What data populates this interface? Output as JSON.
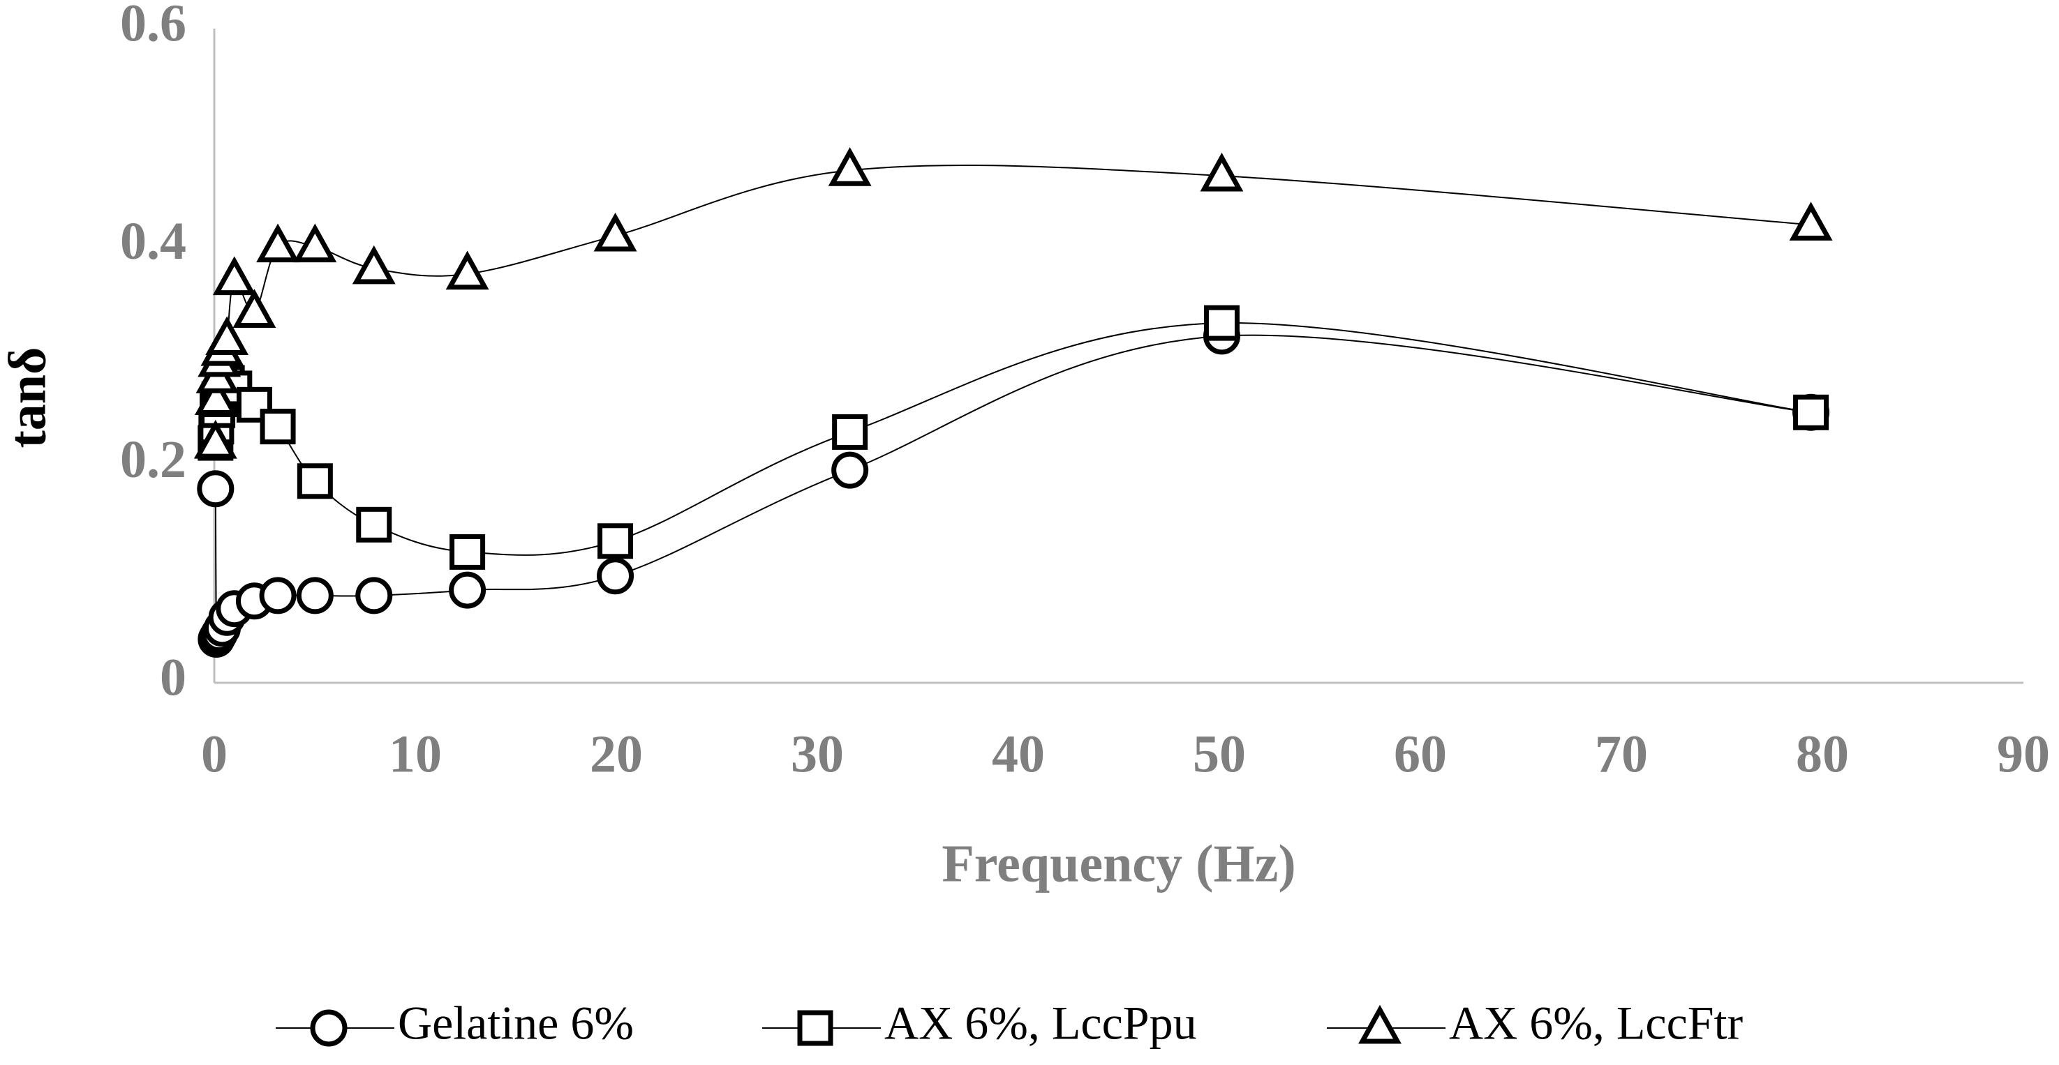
{
  "chart_data": {
    "type": "scatter",
    "x_label": "Frequency (Hz)",
    "y_label": "tanδ",
    "x": [
      0.063,
      0.1,
      0.158,
      0.251,
      0.398,
      0.631,
      1,
      1.995,
      3.162,
      5.012,
      7.943,
      12.59,
      19.95,
      31.62,
      50.12,
      79.43
    ],
    "series": [
      {
        "name": "Gelatine 6%",
        "color": "#000000",
        "marker": "circle",
        "values": [
          0.178,
          0.04,
          0.042,
          0.045,
          0.05,
          0.06,
          0.068,
          0.075,
          0.08,
          0.08,
          0.08,
          0.085,
          0.098,
          0.195,
          0.318,
          0.248
        ]
      },
      {
        "name": "AX 6%, LccPpu",
        "color": "#000000",
        "marker": "square",
        "values": [
          0.22,
          0.235,
          0.25,
          0.26,
          0.27,
          0.275,
          0.27,
          0.255,
          0.235,
          0.185,
          0.145,
          0.12,
          0.13,
          0.23,
          0.33,
          0.248
        ]
      },
      {
        "name": "AX 6%, LccFtr",
        "color": "#000000",
        "marker": "triangle",
        "values": [
          0.22,
          0.26,
          0.28,
          0.295,
          0.305,
          0.315,
          0.37,
          0.34,
          0.4,
          0.4,
          0.38,
          0.375,
          0.41,
          0.47,
          0.465,
          0.42
        ]
      }
    ],
    "xlim": [
      0,
      90
    ],
    "xticks": [
      0,
      10,
      20,
      30,
      40,
      50,
      60,
      70,
      80,
      90
    ],
    "ylim": [
      0,
      0.6
    ],
    "yticks": [
      0,
      0.2,
      0.4,
      0.6
    ],
    "smooth": true,
    "grid": false,
    "legend": "bottom"
  }
}
